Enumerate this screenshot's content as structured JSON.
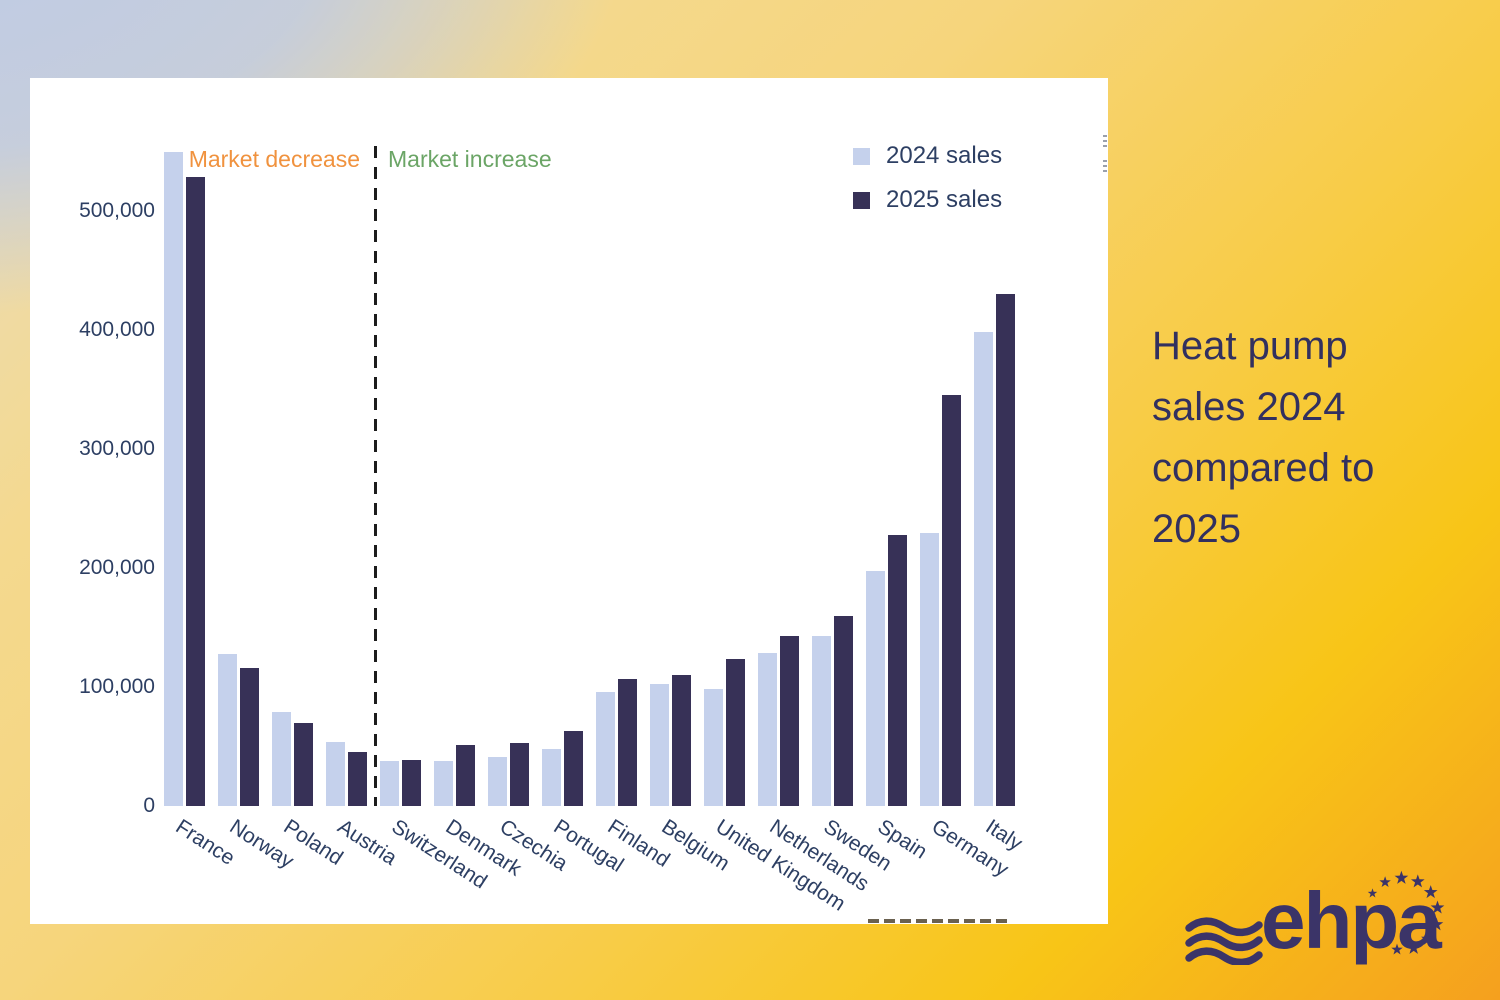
{
  "side_panel": {
    "title": "Heat pump sales 2024 compared to 2025"
  },
  "logo": {
    "text": "ehpa"
  },
  "chart_data": {
    "type": "bar",
    "title": "",
    "categories": [
      "France",
      "Norway",
      "Poland",
      "Austria",
      "Switzerland",
      "Denmark",
      "Czechia",
      "Portugal",
      "Finland",
      "Belgium",
      "United Kingdom",
      "Netherlands",
      "Sweden",
      "Spain",
      "Germany",
      "Italy"
    ],
    "series": [
      {
        "name": "2024 sales",
        "color": "#c5d1ec",
        "values": [
          550000,
          128000,
          79000,
          54000,
          38000,
          38000,
          41000,
          48000,
          96000,
          103000,
          98000,
          129000,
          143000,
          198000,
          230000,
          399000
        ]
      },
      {
        "name": "2025 sales",
        "color": "#373157",
        "values": [
          529000,
          116000,
          70000,
          45000,
          39000,
          51000,
          53000,
          63000,
          107000,
          110000,
          124000,
          143000,
          160000,
          228000,
          346000,
          431000
        ]
      }
    ],
    "y_ticks": [
      "0",
      "100,000",
      "200,000",
      "300,000",
      "400,000",
      "500,000"
    ],
    "y_tick_values": [
      0,
      100000,
      200000,
      300000,
      400000,
      500000
    ],
    "ylim": [
      0,
      550000
    ],
    "grid": false,
    "legend_position": "top-right",
    "annotations": [
      {
        "id": "decrease",
        "text": "Market decrease",
        "color": "#f0923e"
      },
      {
        "id": "increase",
        "text": "Market increase",
        "color": "#6ba566"
      }
    ],
    "divider_after_category": "Austria"
  }
}
